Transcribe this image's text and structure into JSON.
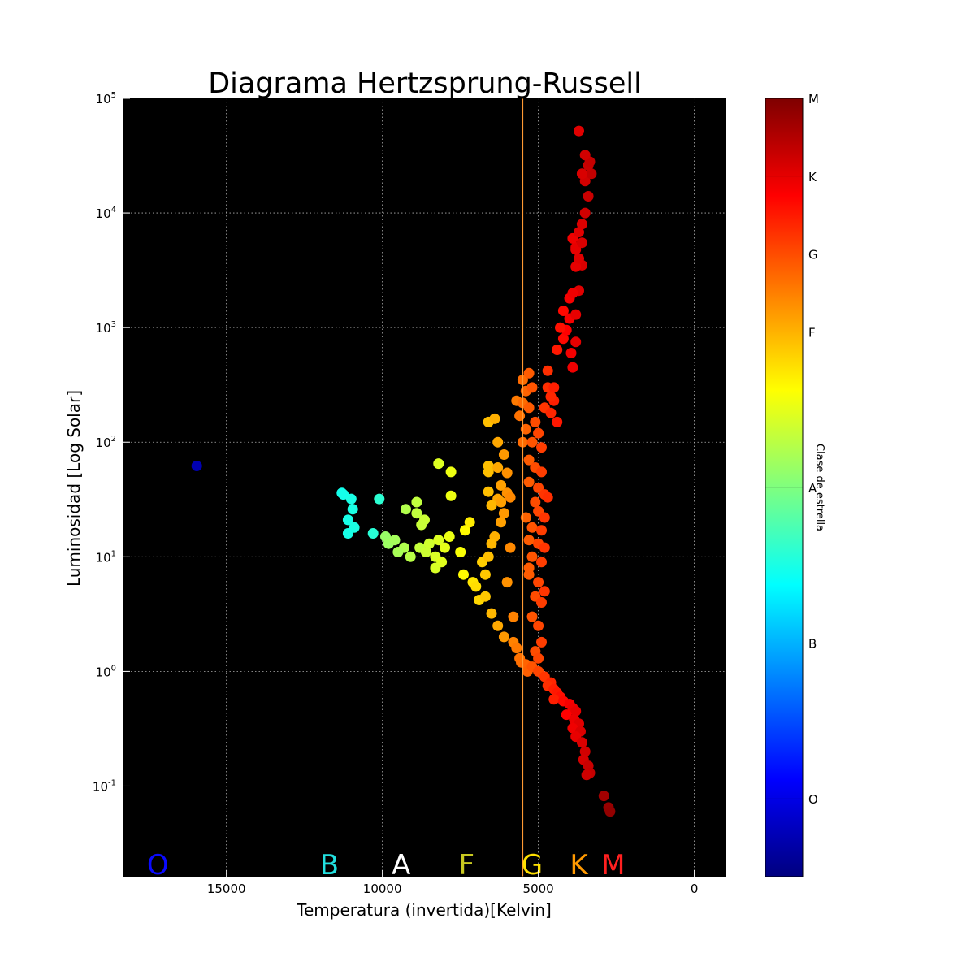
{
  "chart_data": {
    "type": "scatter",
    "title": "Diagrama Hertzsprung-Russell",
    "xlabel": "Temperatura (invertida)[Kelvin]",
    "ylabel": "Luminosidad [Log Solar]",
    "x_inverted": true,
    "xlim": [
      18300,
      -1000
    ],
    "ylim": [
      0.0162,
      100000
    ],
    "yscale": "log",
    "grid": true,
    "background": "#000000",
    "x_ticks": [
      {
        "value": 15000,
        "label": "15000"
      },
      {
        "value": 10000,
        "label": "10000"
      },
      {
        "value": 5000,
        "label": "5000"
      },
      {
        "value": 0,
        "label": "0"
      }
    ],
    "y_ticks": [
      {
        "value": 0.1,
        "base": "10",
        "exp": "-1"
      },
      {
        "value": 1,
        "base": "10",
        "exp": "0"
      },
      {
        "value": 10,
        "base": "10",
        "exp": "1"
      },
      {
        "value": 100,
        "base": "10",
        "exp": "2"
      },
      {
        "value": 1000,
        "base": "10",
        "exp": "3"
      },
      {
        "value": 10000,
        "base": "10",
        "exp": "4"
      },
      {
        "value": 100000,
        "base": "10",
        "exp": "5"
      }
    ],
    "reference_line": {
      "x": 5500,
      "color": "#ff9933"
    },
    "class_labels": [
      {
        "label": "O",
        "x": 17200,
        "color": "#0a0aff"
      },
      {
        "label": "B",
        "x": 11700,
        "color": "#22e0e0"
      },
      {
        "label": "A",
        "x": 9400,
        "color": "#ffffff"
      },
      {
        "label": "F",
        "x": 7300,
        "color": "#c8c820"
      },
      {
        "label": "G",
        "x": 5200,
        "color": "#ffe000"
      },
      {
        "label": "K",
        "x": 3700,
        "color": "#ff9900"
      },
      {
        "label": "M",
        "x": 2600,
        "color": "#ff2020"
      }
    ],
    "colorbar": {
      "label": "Clase de estrella",
      "ticks": [
        "O",
        "B",
        "A",
        "F",
        "G",
        "K",
        "M"
      ],
      "colors": [
        "#00007f",
        "#0000ff",
        "#007fff",
        "#00ffff",
        "#7fff7f",
        "#ffff00",
        "#ff7f00",
        "#ff0000",
        "#7f0000"
      ]
    },
    "series": [
      {
        "values": [
          [
            15950,
            62
          ],
          [
            11300,
            36
          ],
          [
            11250,
            35
          ],
          [
            11000,
            32
          ],
          [
            10950,
            26
          ],
          [
            11100,
            21
          ],
          [
            10900,
            18
          ],
          [
            11100,
            16
          ],
          [
            10100,
            32
          ],
          [
            10300,
            16
          ],
          [
            9900,
            15
          ],
          [
            9800,
            13
          ],
          [
            9600,
            14
          ],
          [
            9300,
            12
          ],
          [
            9500,
            11
          ],
          [
            9250,
            26
          ],
          [
            8900,
            30
          ],
          [
            8900,
            24
          ],
          [
            8650,
            21
          ],
          [
            8750,
            19
          ],
          [
            9100,
            10
          ],
          [
            8800,
            12
          ],
          [
            8500,
            13
          ],
          [
            8600,
            11
          ],
          [
            8200,
            65
          ],
          [
            7800,
            55
          ],
          [
            7800,
            34
          ],
          [
            8300,
            10
          ],
          [
            8100,
            9
          ],
          [
            8300,
            8
          ],
          [
            8000,
            12
          ],
          [
            8200,
            14
          ],
          [
            7850,
            15
          ],
          [
            7500,
            11
          ],
          [
            7350,
            17
          ],
          [
            7200,
            20
          ],
          [
            7400,
            7
          ],
          [
            7100,
            6
          ],
          [
            7000,
            5.5
          ],
          [
            6900,
            4.2
          ],
          [
            6700,
            4.5
          ],
          [
            6500,
            3.2
          ],
          [
            6300,
            2.5
          ],
          [
            6100,
            2.0
          ],
          [
            6400,
            15
          ],
          [
            6200,
            20
          ],
          [
            6500,
            13
          ],
          [
            6800,
            9
          ],
          [
            6700,
            7
          ],
          [
            6600,
            10
          ],
          [
            6600,
            150
          ],
          [
            6400,
            160
          ],
          [
            6300,
            100
          ],
          [
            6100,
            78
          ],
          [
            6600,
            62
          ],
          [
            6300,
            60
          ],
          [
            6600,
            55
          ],
          [
            6000,
            54
          ],
          [
            6600,
            37
          ],
          [
            6200,
            42
          ],
          [
            6300,
            32
          ],
          [
            6000,
            36
          ],
          [
            6500,
            28
          ],
          [
            6200,
            30
          ],
          [
            6100,
            24
          ],
          [
            5900,
            33
          ],
          [
            5900,
            12
          ],
          [
            6000,
            6
          ],
          [
            5800,
            3
          ],
          [
            5800,
            1.8
          ],
          [
            5700,
            1.6
          ],
          [
            5600,
            1.3
          ],
          [
            5550,
            1.2
          ],
          [
            5400,
            1.15
          ],
          [
            5350,
            1.0
          ],
          [
            5300,
            8
          ],
          [
            5700,
            230
          ],
          [
            5500,
            350
          ],
          [
            5500,
            220
          ],
          [
            5400,
            280
          ],
          [
            5500,
            100
          ],
          [
            5600,
            170
          ],
          [
            5300,
            400
          ],
          [
            5300,
            200
          ],
          [
            5200,
            300
          ],
          [
            5100,
            150
          ],
          [
            5400,
            130
          ],
          [
            5200,
            100
          ],
          [
            5000,
            120
          ],
          [
            4900,
            90
          ],
          [
            5300,
            70
          ],
          [
            5100,
            60
          ],
          [
            4900,
            55
          ],
          [
            5300,
            45
          ],
          [
            5000,
            40
          ],
          [
            4800,
            35
          ],
          [
            5100,
            30
          ],
          [
            4700,
            33
          ],
          [
            5000,
            25
          ],
          [
            5400,
            22
          ],
          [
            4800,
            22
          ],
          [
            5200,
            18
          ],
          [
            4900,
            17
          ],
          [
            5300,
            14
          ],
          [
            5000,
            13
          ],
          [
            4800,
            12
          ],
          [
            5200,
            10
          ],
          [
            4900,
            9
          ],
          [
            5300,
            7
          ],
          [
            5000,
            6
          ],
          [
            4800,
            5
          ],
          [
            5100,
            4.5
          ],
          [
            4900,
            4
          ],
          [
            5200,
            3
          ],
          [
            5000,
            2.5
          ],
          [
            4900,
            1.8
          ],
          [
            5100,
            1.5
          ],
          [
            5000,
            1.3
          ],
          [
            5200,
            1.1
          ],
          [
            5000,
            1.0
          ],
          [
            4800,
            0.9
          ],
          [
            4600,
            0.8
          ],
          [
            4700,
            0.75
          ],
          [
            4500,
            0.7
          ],
          [
            4400,
            0.65
          ],
          [
            4300,
            0.6
          ],
          [
            4500,
            0.57
          ],
          [
            4200,
            0.55
          ],
          [
            4000,
            0.52
          ],
          [
            3900,
            0.48
          ],
          [
            3800,
            0.45
          ],
          [
            4100,
            0.42
          ],
          [
            3850,
            0.38
          ],
          [
            3700,
            0.35
          ],
          [
            3900,
            0.32
          ],
          [
            3650,
            0.3
          ],
          [
            3800,
            0.27
          ],
          [
            3600,
            0.24
          ],
          [
            3500,
            0.2
          ],
          [
            3550,
            0.17
          ],
          [
            3400,
            0.15
          ],
          [
            3350,
            0.13
          ],
          [
            3450,
            0.125
          ],
          [
            2900,
            0.082
          ],
          [
            2750,
            0.065
          ],
          [
            2700,
            0.06
          ],
          [
            4700,
            420
          ],
          [
            4700,
            300
          ],
          [
            4500,
            230
          ],
          [
            4600,
            250
          ],
          [
            4400,
            150
          ],
          [
            4800,
            200
          ],
          [
            4500,
            300
          ],
          [
            4600,
            180
          ],
          [
            4200,
            800
          ],
          [
            4100,
            950
          ],
          [
            4300,
            1000
          ],
          [
            4000,
            1200
          ],
          [
            4200,
            1400
          ],
          [
            3800,
            1300
          ],
          [
            4000,
            1800
          ],
          [
            3700,
            2100
          ],
          [
            3950,
            600
          ],
          [
            3900,
            450
          ],
          [
            4400,
            640
          ],
          [
            3800,
            750
          ],
          [
            3900,
            2000
          ],
          [
            3600,
            3500
          ],
          [
            3800,
            3400
          ],
          [
            3700,
            4000
          ],
          [
            3800,
            5000
          ],
          [
            3900,
            6000
          ],
          [
            3700,
            6800
          ],
          [
            3600,
            8000
          ],
          [
            3500,
            10000
          ],
          [
            3800,
            4800
          ],
          [
            3600,
            5500
          ],
          [
            3400,
            14000
          ],
          [
            3500,
            19000
          ],
          [
            3300,
            22000
          ],
          [
            3600,
            22000
          ],
          [
            3400,
            26000
          ],
          [
            3350,
            28000
          ],
          [
            3500,
            32000
          ],
          [
            3700,
            52000
          ]
        ]
      }
    ]
  }
}
